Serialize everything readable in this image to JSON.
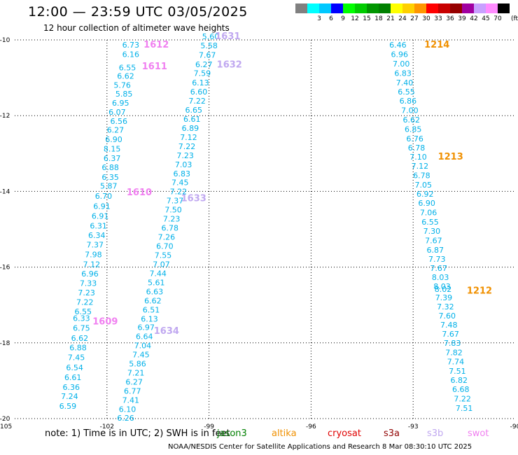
{
  "header": {
    "title": "12:00 — 23:59 UTC 03/05/2025",
    "subtitle": "12 hour collection of altimeter wave heights"
  },
  "legend": {
    "unit": "(ft)",
    "bins": [
      {
        "color": "#808080",
        "label": ""
      },
      {
        "color": "#00ffff",
        "label": "3"
      },
      {
        "color": "#00c8ff",
        "label": "6"
      },
      {
        "color": "#0000ff",
        "label": "9"
      },
      {
        "color": "#00ff00",
        "label": "12"
      },
      {
        "color": "#00cc00",
        "label": "15"
      },
      {
        "color": "#009600",
        "label": "18"
      },
      {
        "color": "#008000",
        "label": "21"
      },
      {
        "color": "#ffff00",
        "label": "24"
      },
      {
        "color": "#ffd000",
        "label": "27"
      },
      {
        "color": "#ff9600",
        "label": "30"
      },
      {
        "color": "#ff0000",
        "label": "33"
      },
      {
        "color": "#c80000",
        "label": "36"
      },
      {
        "color": "#960000",
        "label": "39"
      },
      {
        "color": "#a000a0",
        "label": "42"
      },
      {
        "color": "#c8a0ff",
        "label": "45"
      },
      {
        "color": "#ff8cff",
        "label": "70"
      },
      {
        "color": "#000000",
        "label": ""
      }
    ]
  },
  "map": {
    "lon_range": [
      -105,
      -90
    ],
    "lat_range": [
      -20,
      -10
    ],
    "x_tick_labels": [
      "-105",
      "-102",
      "-99",
      "-96",
      "-93",
      "-90"
    ],
    "y_tick_labels": [
      "-10",
      "-12",
      "-14",
      "-16",
      "-18",
      "-20"
    ],
    "tracks": [
      {
        "color": "#00b0e8",
        "labels": [
          {
            "t": "6.73",
            "lon": -101.3,
            "lat": -10.2
          },
          {
            "t": "6.16",
            "lon": -101.3,
            "lat": -10.45
          },
          {
            "t": "6.55",
            "lon": -101.4,
            "lat": -10.8
          },
          {
            "t": "6.62",
            "lon": -101.45,
            "lat": -11.03
          },
          {
            "t": "5.76",
            "lon": -101.55,
            "lat": -11.27
          },
          {
            "t": "5.85",
            "lon": -101.5,
            "lat": -11.5
          },
          {
            "t": "6.95",
            "lon": -101.6,
            "lat": -11.74
          },
          {
            "t": "6.07",
            "lon": -101.7,
            "lat": -11.98
          },
          {
            "t": "6.56",
            "lon": -101.65,
            "lat": -12.22
          },
          {
            "t": "6.27",
            "lon": -101.75,
            "lat": -12.45
          },
          {
            "t": "6.90",
            "lon": -101.8,
            "lat": -12.7
          },
          {
            "t": "8.15",
            "lon": -101.85,
            "lat": -12.95
          },
          {
            "t": "6.37",
            "lon": -101.85,
            "lat": -13.2
          },
          {
            "t": "6.88",
            "lon": -101.9,
            "lat": -13.44
          },
          {
            "t": "6.35",
            "lon": -101.9,
            "lat": -13.7
          },
          {
            "t": "5.87",
            "lon": -101.95,
            "lat": -13.93
          },
          {
            "t": "6.70",
            "lon": -102.1,
            "lat": -14.2
          },
          {
            "t": "6.91",
            "lon": -102.15,
            "lat": -14.46
          },
          {
            "t": "6.91",
            "lon": -102.2,
            "lat": -14.72
          },
          {
            "t": "6.31",
            "lon": -102.25,
            "lat": -14.98
          },
          {
            "t": "6.34",
            "lon": -102.3,
            "lat": -15.23
          },
          {
            "t": "7.37",
            "lon": -102.35,
            "lat": -15.48
          },
          {
            "t": "7.98",
            "lon": -102.4,
            "lat": -15.74
          },
          {
            "t": "7.12",
            "lon": -102.45,
            "lat": -16.0
          },
          {
            "t": "6.96",
            "lon": -102.5,
            "lat": -16.25
          },
          {
            "t": "7.33",
            "lon": -102.55,
            "lat": -16.5
          },
          {
            "t": "7.23",
            "lon": -102.6,
            "lat": -16.75
          },
          {
            "t": "7.22",
            "lon": -102.65,
            "lat": -17.0
          },
          {
            "t": "6.55",
            "lon": -102.7,
            "lat": -17.25
          },
          {
            "t": "6.33",
            "lon": -102.75,
            "lat": -17.42
          },
          {
            "t": "6.75",
            "lon": -102.75,
            "lat": -17.68
          },
          {
            "t": "6.62",
            "lon": -102.8,
            "lat": -17.95
          },
          {
            "t": "6.88",
            "lon": -102.85,
            "lat": -18.2
          },
          {
            "t": "7.45",
            "lon": -102.9,
            "lat": -18.46
          },
          {
            "t": "6.54",
            "lon": -102.95,
            "lat": -18.72
          },
          {
            "t": "6.61",
            "lon": -103.0,
            "lat": -18.98
          },
          {
            "t": "6.36",
            "lon": -103.05,
            "lat": -19.24
          },
          {
            "t": "7.24",
            "lon": -103.1,
            "lat": -19.48
          },
          {
            "t": "6.59",
            "lon": -103.15,
            "lat": -19.74
          }
        ]
      },
      {
        "color": "#00b0e8",
        "labels": [
          {
            "t": "5.60",
            "lon": -98.95,
            "lat": -9.98
          },
          {
            "t": "5.58",
            "lon": -99.0,
            "lat": -10.22
          },
          {
            "t": "7.67",
            "lon": -99.05,
            "lat": -10.47
          },
          {
            "t": "6.27",
            "lon": -99.15,
            "lat": -10.72
          },
          {
            "t": "7.59",
            "lon": -99.2,
            "lat": -10.95
          },
          {
            "t": "6.13",
            "lon": -99.25,
            "lat": -11.2
          },
          {
            "t": "6.60",
            "lon": -99.3,
            "lat": -11.44
          },
          {
            "t": "7.22",
            "lon": -99.35,
            "lat": -11.68
          },
          {
            "t": "6.65",
            "lon": -99.45,
            "lat": -11.92
          },
          {
            "t": "6.61",
            "lon": -99.5,
            "lat": -12.16
          },
          {
            "t": "6.89",
            "lon": -99.55,
            "lat": -12.4
          },
          {
            "t": "7.12",
            "lon": -99.6,
            "lat": -12.64
          },
          {
            "t": "7.22",
            "lon": -99.65,
            "lat": -12.88
          },
          {
            "t": "7.23",
            "lon": -99.7,
            "lat": -13.12
          },
          {
            "t": "7.03",
            "lon": -99.75,
            "lat": -13.36
          },
          {
            "t": "6.83",
            "lon": -99.8,
            "lat": -13.6
          },
          {
            "t": "7.45",
            "lon": -99.85,
            "lat": -13.84
          },
          {
            "t": "7.22",
            "lon": -99.9,
            "lat": -14.08
          },
          {
            "t": "7.37",
            "lon": -100.0,
            "lat": -14.32
          },
          {
            "t": "7.50",
            "lon": -100.05,
            "lat": -14.56
          },
          {
            "t": "7.23",
            "lon": -100.1,
            "lat": -14.8
          },
          {
            "t": "6.78",
            "lon": -100.15,
            "lat": -15.04
          },
          {
            "t": "7.26",
            "lon": -100.25,
            "lat": -15.28
          },
          {
            "t": "6.70",
            "lon": -100.3,
            "lat": -15.52
          },
          {
            "t": "7.55",
            "lon": -100.35,
            "lat": -15.76
          },
          {
            "t": "7.07",
            "lon": -100.4,
            "lat": -16.0
          },
          {
            "t": "7.44",
            "lon": -100.5,
            "lat": -16.24
          },
          {
            "t": "5.61",
            "lon": -100.55,
            "lat": -16.48
          },
          {
            "t": "6.63",
            "lon": -100.6,
            "lat": -16.72
          },
          {
            "t": "6.62",
            "lon": -100.65,
            "lat": -16.96
          },
          {
            "t": "6.51",
            "lon": -100.7,
            "lat": -17.2
          },
          {
            "t": "6.13",
            "lon": -100.75,
            "lat": -17.44
          },
          {
            "t": "6.97",
            "lon": -100.85,
            "lat": -17.66
          },
          {
            "t": "6.64",
            "lon": -100.9,
            "lat": -17.9
          },
          {
            "t": "7.04",
            "lon": -100.95,
            "lat": -18.14
          },
          {
            "t": "7.45",
            "lon": -101.0,
            "lat": -18.38
          },
          {
            "t": "5.86",
            "lon": -101.1,
            "lat": -18.62
          },
          {
            "t": "7.21",
            "lon": -101.15,
            "lat": -18.86
          },
          {
            "t": "6.27",
            "lon": -101.2,
            "lat": -19.1
          },
          {
            "t": "6.77",
            "lon": -101.25,
            "lat": -19.34
          },
          {
            "t": "7.41",
            "lon": -101.3,
            "lat": -19.58
          },
          {
            "t": "6.10",
            "lon": -101.4,
            "lat": -19.82
          },
          {
            "t": "6.26",
            "lon": -101.45,
            "lat": -20.06
          }
        ]
      },
      {
        "color": "#00b0e8",
        "labels": [
          {
            "t": "6.46",
            "lon": -93.45,
            "lat": -10.2
          },
          {
            "t": "6.96",
            "lon": -93.4,
            "lat": -10.45
          },
          {
            "t": "7.00",
            "lon": -93.35,
            "lat": -10.7
          },
          {
            "t": "6.83",
            "lon": -93.3,
            "lat": -10.95
          },
          {
            "t": "7.40",
            "lon": -93.25,
            "lat": -11.2
          },
          {
            "t": "6.55",
            "lon": -93.2,
            "lat": -11.44
          },
          {
            "t": "6.86",
            "lon": -93.15,
            "lat": -11.68
          },
          {
            "t": "7.00",
            "lon": -93.1,
            "lat": -11.93
          },
          {
            "t": "6.62",
            "lon": -93.05,
            "lat": -12.18
          },
          {
            "t": "6.85",
            "lon": -93.0,
            "lat": -12.43
          },
          {
            "t": "6.76",
            "lon": -92.95,
            "lat": -12.68
          },
          {
            "t": "6.78",
            "lon": -92.9,
            "lat": -12.92
          },
          {
            "t": "7.10",
            "lon": -92.85,
            "lat": -13.16
          },
          {
            "t": "7.12",
            "lon": -92.8,
            "lat": -13.4
          },
          {
            "t": "6.78",
            "lon": -92.75,
            "lat": -13.65
          },
          {
            "t": "7.05",
            "lon": -92.7,
            "lat": -13.9
          },
          {
            "t": "6.92",
            "lon": -92.65,
            "lat": -14.14
          },
          {
            "t": "6.90",
            "lon": -92.6,
            "lat": -14.38
          },
          {
            "t": "7.06",
            "lon": -92.55,
            "lat": -14.63
          },
          {
            "t": "6.55",
            "lon": -92.5,
            "lat": -14.88
          },
          {
            "t": "7.30",
            "lon": -92.45,
            "lat": -15.12
          },
          {
            "t": "7.67",
            "lon": -92.4,
            "lat": -15.37
          },
          {
            "t": "6.87",
            "lon": -92.35,
            "lat": -15.62
          },
          {
            "t": "7.73",
            "lon": -92.3,
            "lat": -15.86
          },
          {
            "t": "7.67",
            "lon": -92.25,
            "lat": -16.1
          },
          {
            "t": "8.03",
            "lon": -92.2,
            "lat": -16.34
          },
          {
            "t": "8.03",
            "lon": -92.15,
            "lat": -16.58
          },
          {
            "t": "8.02",
            "lon": -92.12,
            "lat": -16.65
          },
          {
            "t": "7.39",
            "lon": -92.1,
            "lat": -16.88
          },
          {
            "t": "7.32",
            "lon": -92.05,
            "lat": -17.12
          },
          {
            "t": "7.60",
            "lon": -92.0,
            "lat": -17.36
          },
          {
            "t": "7.48",
            "lon": -91.95,
            "lat": -17.6
          },
          {
            "t": "7.67",
            "lon": -91.9,
            "lat": -17.84
          },
          {
            "t": "7.83",
            "lon": -91.85,
            "lat": -18.08
          },
          {
            "t": "7.82",
            "lon": -91.8,
            "lat": -18.33
          },
          {
            "t": "7.74",
            "lon": -91.75,
            "lat": -18.57
          },
          {
            "t": "7.51",
            "lon": -91.7,
            "lat": -18.82
          },
          {
            "t": "6.82",
            "lon": -91.65,
            "lat": -19.06
          },
          {
            "t": "6.68",
            "lon": -91.6,
            "lat": -19.3
          },
          {
            "t": "7.22",
            "lon": -91.55,
            "lat": -19.55
          },
          {
            "t": "7.51",
            "lon": -91.5,
            "lat": -19.8
          }
        ]
      }
    ],
    "time_labels": [
      {
        "t": "1631",
        "color": "#c0a8f0",
        "lon": -98.45,
        "lat": -9.98
      },
      {
        "t": "1632",
        "color": "#c0a8f0",
        "lon": -98.4,
        "lat": -10.73
      },
      {
        "t": "1633",
        "color": "#c0a8f0",
        "lon": -99.45,
        "lat": -14.26
      },
      {
        "t": "1634",
        "color": "#c0a8f0",
        "lon": -100.25,
        "lat": -17.76
      },
      {
        "t": "1612",
        "color": "#f080f0",
        "lon": -100.55,
        "lat": -10.2
      },
      {
        "t": "1611",
        "color": "#f080f0",
        "lon": -100.6,
        "lat": -10.78
      },
      {
        "t": "1610",
        "color": "#f080f0",
        "lon": -101.05,
        "lat": -14.1
      },
      {
        "t": "1609",
        "color": "#f080f0",
        "lon": -102.05,
        "lat": -17.51
      },
      {
        "t": "1214",
        "color": "#f09000",
        "lon": -92.3,
        "lat": -10.2
      },
      {
        "t": "1213",
        "color": "#f09000",
        "lon": -91.9,
        "lat": -13.16
      },
      {
        "t": "1212",
        "color": "#f09000",
        "lon": -91.05,
        "lat": -16.7
      }
    ]
  },
  "footer": {
    "note": "note:  1) Time is in UTC; 2) SWH is in feet",
    "missions": [
      {
        "name": "jason3",
        "color": "#008000"
      },
      {
        "name": "altika",
        "color": "#f09000"
      },
      {
        "name": "cryosat",
        "color": "#e00000"
      },
      {
        "name": "s3a",
        "color": "#900000"
      },
      {
        "name": "s3b",
        "color": "#c0a8f0"
      },
      {
        "name": "swot",
        "color": "#f080f0"
      }
    ],
    "credit": "NOAA/NESDIS Center for Satellite Applications and Research    8 Mar 08:30:10 UTC 2025"
  }
}
